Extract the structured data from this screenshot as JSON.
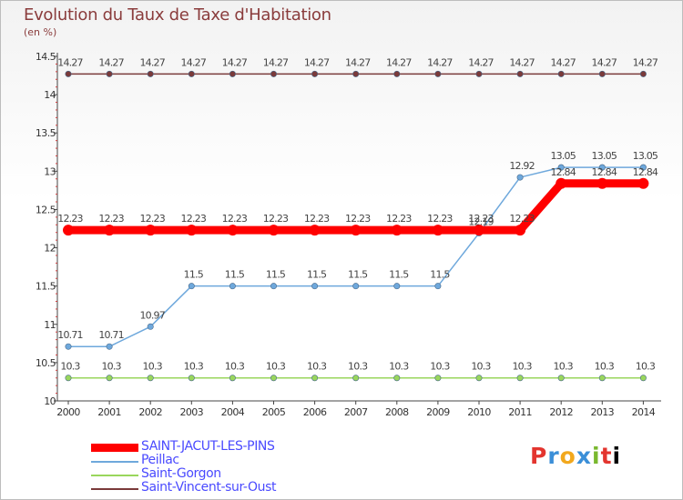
{
  "title": "Evolution du Taux de Taxe d'Habitation",
  "subtitle": "(en %)",
  "logo": [
    "P",
    "r",
    "o",
    "x",
    "i",
    "t",
    "i"
  ],
  "chart_data": {
    "type": "line",
    "x": [
      2000,
      2001,
      2002,
      2003,
      2004,
      2005,
      2006,
      2007,
      2008,
      2009,
      2010,
      2011,
      2012,
      2013,
      2014
    ],
    "xtick_labels": [
      "2000",
      "2001",
      "2002",
      "2003",
      "2004",
      "2005",
      "2006",
      "2007",
      "2008",
      "2009",
      "2010",
      "2011",
      "2012",
      "2013",
      "2014"
    ],
    "ylim": [
      10,
      14.5
    ],
    "yticks": [
      10,
      10.5,
      11,
      11.5,
      12,
      12.5,
      13,
      13.5,
      14,
      14.5
    ],
    "ytick_labels": [
      "10",
      "10.5",
      "11",
      "11.5",
      "12",
      "12.5",
      "13",
      "13.5",
      "14",
      "14.5"
    ],
    "grid": false,
    "series": [
      {
        "name": "Saint-Vincent-sur-Oust",
        "color": "#7a3a3a",
        "values": [
          14.27,
          14.27,
          14.27,
          14.27,
          14.27,
          14.27,
          14.27,
          14.27,
          14.27,
          14.27,
          14.27,
          14.27,
          14.27,
          14.27,
          14.27
        ],
        "labels": [
          "14.27",
          "14.27",
          "14.27",
          "14.27",
          "14.27",
          "14.27",
          "14.27",
          "14.27",
          "14.27",
          "14.27",
          "14.27",
          "14.27",
          "14.27",
          "14.27",
          "14.27"
        ]
      },
      {
        "name": "Saint-Gorgon",
        "color": "#99d65c",
        "values": [
          10.3,
          10.3,
          10.3,
          10.3,
          10.3,
          10.3,
          10.3,
          10.3,
          10.3,
          10.3,
          10.3,
          10.3,
          10.3,
          10.3,
          10.3
        ],
        "labels": [
          "10.3",
          "10.3",
          "10.3",
          "10.3",
          "10.3",
          "10.3",
          "10.3",
          "10.3",
          "10.3",
          "10.3",
          "10.3",
          "10.3",
          "10.3",
          "10.3",
          "10.3"
        ]
      },
      {
        "name": "Peillac",
        "color": "#6ea8dc",
        "values": [
          10.71,
          10.71,
          10.97,
          11.5,
          11.5,
          11.5,
          11.5,
          11.5,
          11.5,
          11.5,
          12.19,
          12.92,
          13.05,
          13.05,
          13.05
        ],
        "labels": [
          "10.71",
          "10.71",
          "10.97",
          "11.5",
          "11.5",
          "11.5",
          "11.5",
          "11.5",
          "11.5",
          "11.5",
          "12.19",
          "12.92",
          "13.05",
          "13.05",
          "13.05"
        ]
      },
      {
        "name": "SAINT-JACUT-LES-PINS",
        "color": "#ff0000",
        "values": [
          12.23,
          12.23,
          12.23,
          12.23,
          12.23,
          12.23,
          12.23,
          12.23,
          12.23,
          12.23,
          12.23,
          12.23,
          12.84,
          12.84,
          12.84
        ],
        "labels": [
          "12.23",
          "12.23",
          "12.23",
          "12.23",
          "12.23",
          "12.23",
          "12.23",
          "12.23",
          "12.23",
          "12.23",
          "12.23",
          "12.23",
          "12.84",
          "12.84",
          "12.84"
        ]
      }
    ],
    "legend": [
      {
        "name": "SAINT-JACUT-LES-PINS",
        "color": "#ff0000"
      },
      {
        "name": "Peillac",
        "color": "#6ea8dc"
      },
      {
        "name": "Saint-Gorgon",
        "color": "#99d65c"
      },
      {
        "name": "Saint-Vincent-sur-Oust",
        "color": "#7a3a3a"
      }
    ],
    "legend_position": "bottom-left"
  }
}
